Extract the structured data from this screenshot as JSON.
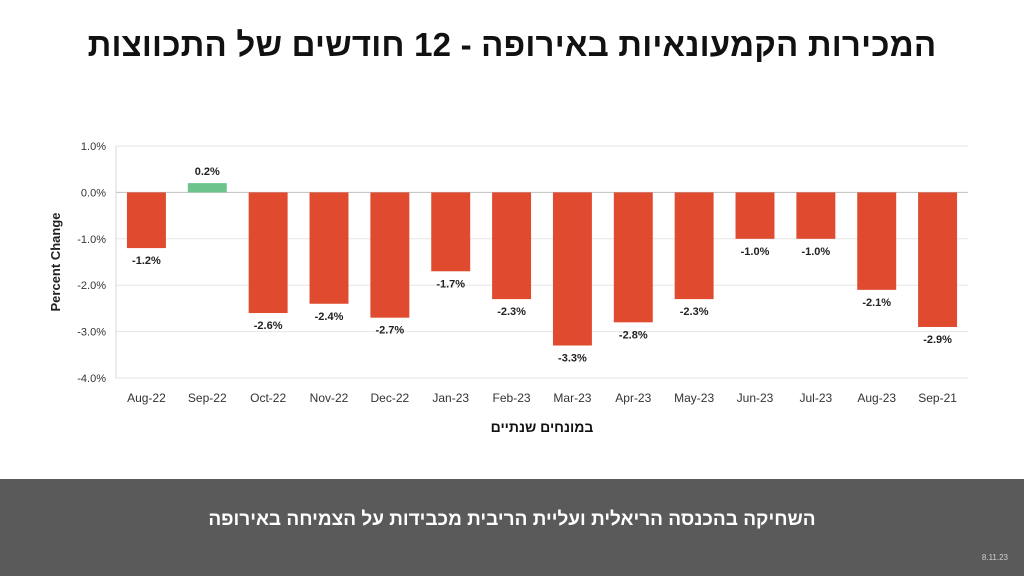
{
  "title": "המכירות הקמעונאיות באירופה - 12 חודשים של התכווצות",
  "footer": {
    "text": "השחיקה בהכנסה הריאלית  ועליית הריבית מכבידות על הצמיחה באירופה",
    "date": "8.11.23"
  },
  "colors": {
    "negative": "#e04a2e",
    "positive": "#6cc48c",
    "footer_bg": "#5a5a5a"
  },
  "chart_data": {
    "type": "bar",
    "title": "",
    "xlabel": "במונחים שנתיים",
    "ylabel": "Percent Change",
    "categories": [
      "Aug-22",
      "Sep-22",
      "Oct-22",
      "Nov-22",
      "Dec-22",
      "Jan-23",
      "Feb-23",
      "Mar-23",
      "Apr-23",
      "May-23",
      "Jun-23",
      "Jul-23",
      "Aug-23",
      "Sep-21"
    ],
    "values": [
      -1.2,
      0.2,
      -2.6,
      -2.4,
      -2.7,
      -1.7,
      -2.3,
      -3.3,
      -2.8,
      -2.3,
      -1.0,
      -1.0,
      -2.1,
      -2.9
    ],
    "data_labels": [
      "-1.2%",
      "0.2%",
      "-2.6%",
      "-2.4%",
      "-2.7%",
      "-1.7%",
      "-2.3%",
      "-3.3%",
      "-2.8%",
      "-2.3%",
      "-1.0%",
      "-1.0%",
      "-2.1%",
      "-2.9%"
    ],
    "ylim": [
      -4.0,
      1.0
    ],
    "yticks": [
      1.0,
      0.0,
      -1.0,
      -2.0,
      -3.0,
      -4.0
    ],
    "ytick_labels": [
      "1.0%",
      "0.0%",
      "-1.0%",
      "-2.0%",
      "-3.0%",
      "-4.0%"
    ],
    "grid": true,
    "legend": "none"
  }
}
